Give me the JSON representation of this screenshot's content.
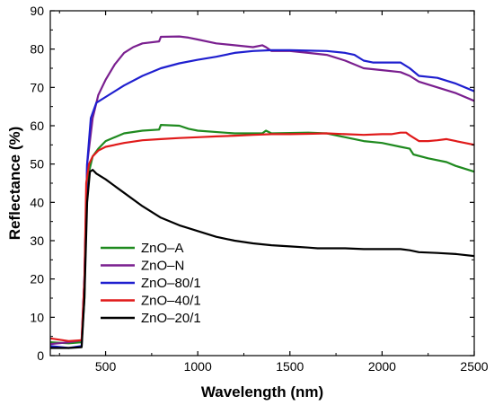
{
  "chart_data": {
    "type": "line",
    "title": "",
    "xlabel": "Wavelength (nm)",
    "ylabel": "Reflectance (%)",
    "xlim": [
      200,
      2500
    ],
    "ylim": [
      0,
      90
    ],
    "xticks": [
      500,
      1000,
      1500,
      2000,
      2500
    ],
    "yticks": [
      0,
      10,
      20,
      30,
      40,
      50,
      60,
      70,
      80,
      90
    ],
    "grid": false,
    "legend_position": "lower-left",
    "series": [
      {
        "name": "ZnO–A",
        "color": "#1f8a1f",
        "points": [
          [
            200,
            3.5
          ],
          [
            300,
            3.2
          ],
          [
            370,
            3.5
          ],
          [
            385,
            15
          ],
          [
            395,
            40
          ],
          [
            410,
            48
          ],
          [
            430,
            52
          ],
          [
            460,
            54
          ],
          [
            500,
            56
          ],
          [
            600,
            58
          ],
          [
            700,
            58.7
          ],
          [
            790,
            59
          ],
          [
            800,
            60.2
          ],
          [
            900,
            60
          ],
          [
            950,
            59.2
          ],
          [
            1000,
            58.7
          ],
          [
            1200,
            58
          ],
          [
            1350,
            58
          ],
          [
            1370,
            58.7
          ],
          [
            1400,
            58
          ],
          [
            1600,
            58.2
          ],
          [
            1700,
            58
          ],
          [
            1800,
            57
          ],
          [
            1900,
            56
          ],
          [
            2000,
            55.5
          ],
          [
            2100,
            54.5
          ],
          [
            2150,
            54
          ],
          [
            2170,
            52.5
          ],
          [
            2250,
            51.5
          ],
          [
            2350,
            50.5
          ],
          [
            2400,
            49.5
          ],
          [
            2500,
            48
          ]
        ]
      },
      {
        "name": "ZnO–N",
        "color": "#7a1f8f",
        "points": [
          [
            200,
            3
          ],
          [
            300,
            3.5
          ],
          [
            370,
            4
          ],
          [
            385,
            20
          ],
          [
            400,
            50
          ],
          [
            430,
            62
          ],
          [
            460,
            68
          ],
          [
            500,
            72
          ],
          [
            550,
            76
          ],
          [
            600,
            79
          ],
          [
            650,
            80.5
          ],
          [
            700,
            81.5
          ],
          [
            790,
            82
          ],
          [
            800,
            83.2
          ],
          [
            900,
            83.3
          ],
          [
            950,
            83
          ],
          [
            1000,
            82.5
          ],
          [
            1100,
            81.5
          ],
          [
            1200,
            81
          ],
          [
            1300,
            80.5
          ],
          [
            1350,
            81
          ],
          [
            1370,
            80.5
          ],
          [
            1400,
            79.5
          ],
          [
            1500,
            79.5
          ],
          [
            1600,
            79
          ],
          [
            1700,
            78.5
          ],
          [
            1800,
            77
          ],
          [
            1900,
            75
          ],
          [
            2000,
            74.5
          ],
          [
            2100,
            74
          ],
          [
            2150,
            73
          ],
          [
            2200,
            71.5
          ],
          [
            2300,
            70
          ],
          [
            2400,
            68.5
          ],
          [
            2500,
            66.5
          ]
        ]
      },
      {
        "name": "ZnO–80/1",
        "color": "#1f1fcf",
        "points": [
          [
            200,
            2.5
          ],
          [
            300,
            2
          ],
          [
            370,
            2.5
          ],
          [
            385,
            20
          ],
          [
            400,
            50
          ],
          [
            420,
            62
          ],
          [
            450,
            66
          ],
          [
            500,
            67.5
          ],
          [
            600,
            70.5
          ],
          [
            700,
            73
          ],
          [
            800,
            75
          ],
          [
            900,
            76.3
          ],
          [
            1000,
            77.2
          ],
          [
            1100,
            78
          ],
          [
            1200,
            79
          ],
          [
            1300,
            79.5
          ],
          [
            1400,
            79.7
          ],
          [
            1500,
            79.7
          ],
          [
            1600,
            79.6
          ],
          [
            1700,
            79.5
          ],
          [
            1800,
            79
          ],
          [
            1850,
            78.5
          ],
          [
            1900,
            77
          ],
          [
            1950,
            76.5
          ],
          [
            2000,
            76.5
          ],
          [
            2100,
            76.5
          ],
          [
            2150,
            75
          ],
          [
            2200,
            73
          ],
          [
            2300,
            72.5
          ],
          [
            2400,
            71
          ],
          [
            2500,
            69
          ]
        ]
      },
      {
        "name": "ZnO–40/1",
        "color": "#e01a1a",
        "points": [
          [
            200,
            4.5
          ],
          [
            300,
            3.8
          ],
          [
            370,
            4
          ],
          [
            385,
            20
          ],
          [
            395,
            45
          ],
          [
            410,
            50
          ],
          [
            430,
            52
          ],
          [
            460,
            53.5
          ],
          [
            500,
            54.5
          ],
          [
            600,
            55.5
          ],
          [
            700,
            56.2
          ],
          [
            800,
            56.5
          ],
          [
            900,
            56.8
          ],
          [
            1000,
            57
          ],
          [
            1100,
            57.2
          ],
          [
            1200,
            57.4
          ],
          [
            1300,
            57.6
          ],
          [
            1400,
            57.8
          ],
          [
            1500,
            57.8
          ],
          [
            1600,
            57.9
          ],
          [
            1700,
            58
          ],
          [
            1800,
            57.8
          ],
          [
            1900,
            57.6
          ],
          [
            2000,
            57.8
          ],
          [
            2050,
            57.8
          ],
          [
            2100,
            58.2
          ],
          [
            2130,
            58.2
          ],
          [
            2150,
            57.5
          ],
          [
            2200,
            56
          ],
          [
            2250,
            56
          ],
          [
            2300,
            56.2
          ],
          [
            2350,
            56.5
          ],
          [
            2400,
            56
          ],
          [
            2450,
            55.5
          ],
          [
            2500,
            55
          ]
        ]
      },
      {
        "name": "ZnO–20/1",
        "color": "#000000",
        "points": [
          [
            200,
            2
          ],
          [
            300,
            2
          ],
          [
            370,
            2.2
          ],
          [
            385,
            15
          ],
          [
            400,
            40
          ],
          [
            415,
            48
          ],
          [
            430,
            48.5
          ],
          [
            450,
            47.5
          ],
          [
            500,
            46
          ],
          [
            600,
            42.5
          ],
          [
            700,
            39
          ],
          [
            800,
            36
          ],
          [
            900,
            34
          ],
          [
            1000,
            32.5
          ],
          [
            1100,
            31
          ],
          [
            1200,
            30
          ],
          [
            1300,
            29.3
          ],
          [
            1400,
            28.8
          ],
          [
            1500,
            28.5
          ],
          [
            1600,
            28.2
          ],
          [
            1650,
            28
          ],
          [
            1700,
            28
          ],
          [
            1800,
            28
          ],
          [
            1900,
            27.8
          ],
          [
            2000,
            27.8
          ],
          [
            2100,
            27.8
          ],
          [
            2150,
            27.5
          ],
          [
            2200,
            27
          ],
          [
            2300,
            26.8
          ],
          [
            2400,
            26.5
          ],
          [
            2500,
            26
          ]
        ]
      }
    ]
  }
}
